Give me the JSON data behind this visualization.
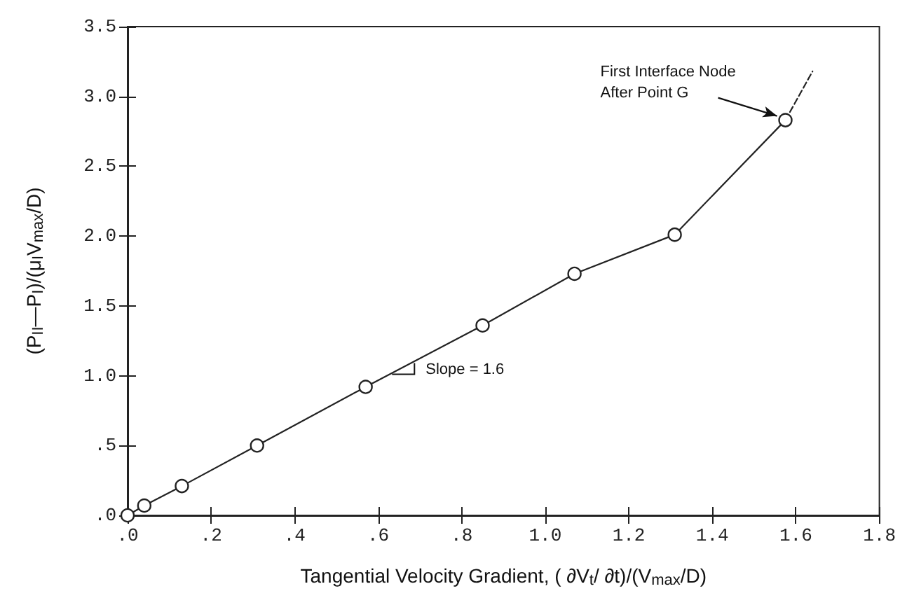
{
  "chart_data": {
    "type": "line",
    "xlabel": "Tangential Velocity Gradient, ( ∂V$_{t}$/ ∂t)/(V$_{max}$/D)",
    "ylabel": "(P$_{II}$—P$_{I}$)/(μ$_{I}$V$_{max}$/D)",
    "series": [
      {
        "x": [
          0,
          0.04,
          0.13,
          0.31,
          0.57,
          0.85,
          1.07,
          1.31,
          1.575
        ],
        "values": [
          0,
          0.07,
          0.21,
          0.5,
          0.92,
          1.36,
          1.73,
          2.01,
          2.83
        ],
        "color": "#222222",
        "marker": "circle",
        "line_style": "solid"
      },
      {
        "x": [
          1.575,
          1.64
        ],
        "values": [
          2.83,
          3.18
        ],
        "color": "#222222",
        "marker": "none",
        "line_style": "dashed"
      }
    ],
    "xlim": [
      0,
      1.8
    ],
    "xticks": [
      {
        "value": 0,
        "label": ".0"
      },
      {
        "value": 0.2,
        "label": ".2"
      },
      {
        "value": 0.4,
        "label": ".4"
      },
      {
        "value": 0.6,
        "label": ".6"
      },
      {
        "value": 0.8,
        "label": ".8"
      },
      {
        "value": 1.0,
        "label": "1.0"
      },
      {
        "value": 1.2,
        "label": "1.2"
      },
      {
        "value": 1.4,
        "label": "1.4"
      },
      {
        "value": 1.6,
        "label": "1.6"
      },
      {
        "value": 1.8,
        "label": "1.8"
      }
    ],
    "ylim": [
      0,
      3.5
    ],
    "yticks": [
      {
        "value": 0,
        "label": ".0"
      },
      {
        "value": 0.5,
        "label": ".5"
      },
      {
        "value": 1.0,
        "label": "1.0"
      },
      {
        "value": 1.5,
        "label": "1.5"
      },
      {
        "value": 2.0,
        "label": "2.0"
      },
      {
        "value": 2.5,
        "label": "2.5"
      },
      {
        "value": 3.0,
        "label": "3.0"
      },
      {
        "value": 3.5,
        "label": "3.5"
      }
    ],
    "annotations": [
      {
        "text": "First Interface Node\nAfter Point G",
        "x": 1.575,
        "y": 2.83
      },
      {
        "text": "Slope = 1.6",
        "x": 0.66,
        "y": 1.05
      }
    ],
    "grid": false
  }
}
